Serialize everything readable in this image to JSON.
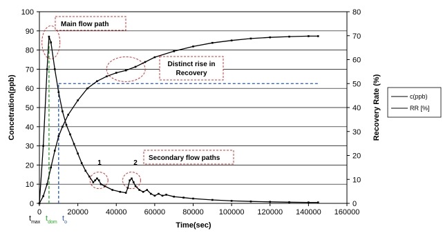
{
  "chart_data": {
    "type": "line",
    "xlabel": "Time(sec)",
    "ylabel_left": "Concetration(ppb)",
    "ylabel_right": "Recovery Rate (%)",
    "xlim": [
      0,
      160000
    ],
    "ylim_left": [
      0,
      100
    ],
    "ylim_right": [
      0,
      80
    ],
    "x_ticks": [
      "0",
      "20000",
      "40000",
      "60000",
      "80000",
      "100000",
      "120000",
      "140000",
      "160000"
    ],
    "y_left_ticks": [
      "0",
      "10",
      "20",
      "30",
      "40",
      "50",
      "60",
      "70",
      "80",
      "90",
      "100"
    ],
    "y_right_ticks": [
      "0",
      "10",
      "20",
      "30",
      "40",
      "50",
      "60",
      "70",
      "80"
    ],
    "grid": "horizontal",
    "legend_position": "right",
    "legend": [
      "c(ppb)",
      "RR [%]"
    ],
    "series": [
      {
        "name": "c(ppb)",
        "axis": "left",
        "color": "#000000",
        "x": [
          0,
          2000,
          4000,
          5000,
          6000,
          8000,
          10000,
          12000,
          14000,
          16000,
          18000,
          20000,
          22000,
          24000,
          26000,
          28000,
          29000,
          30000,
          31000,
          32000,
          34000,
          38000,
          42000,
          45000,
          46000,
          47000,
          48000,
          49000,
          50000,
          52000,
          54000,
          56000,
          58000,
          60000,
          62000,
          64000,
          66000,
          70000,
          75000,
          80000,
          90000,
          100000,
          110000,
          120000,
          130000,
          140000,
          145000
        ],
        "values": [
          0,
          30,
          70,
          87,
          84,
          70,
          58,
          48,
          41,
          36,
          31,
          26,
          21,
          17,
          14,
          11,
          12,
          13,
          12,
          10,
          9,
          7,
          6,
          5.5,
          8,
          12,
          13,
          11,
          9,
          7,
          6,
          7,
          5,
          4,
          5,
          4,
          4.5,
          3.5,
          3,
          2.5,
          1.8,
          1.3,
          1.0,
          0.8,
          0.6,
          0.5,
          0.5
        ]
      },
      {
        "name": "RR [%]",
        "axis": "right",
        "color": "#000000",
        "x": [
          0,
          2000,
          4000,
          6000,
          8000,
          10000,
          12000,
          15000,
          20000,
          25000,
          30000,
          35000,
          40000,
          45000,
          50000,
          55000,
          60000,
          70000,
          80000,
          90000,
          100000,
          110000,
          120000,
          130000,
          140000,
          145000
        ],
        "values": [
          0,
          3,
          8,
          15,
          22,
          28,
          32,
          37,
          43,
          48,
          51,
          53,
          54.5,
          55.5,
          57,
          59,
          61,
          63.5,
          65.5,
          67,
          68,
          68.8,
          69.3,
          69.6,
          69.8,
          69.8
        ]
      }
    ],
    "reference_lines": [
      {
        "orientation": "horizontal",
        "axis": "right",
        "value": 50,
        "x_from": 10000,
        "x_to": 145000,
        "color": "#2255bb"
      },
      {
        "orientation": "vertical",
        "x": 10000,
        "y_to_right": 50,
        "color": "#2255bb"
      },
      {
        "orientation": "vertical",
        "x": 5000,
        "y_to_left": 87,
        "color": "#22aa22"
      }
    ],
    "annotations": [
      {
        "text": "Main flow path",
        "box_color": "#e03030"
      },
      {
        "text": "Distinct rise in",
        "text2": "Recovery",
        "box_color": "#e03030"
      },
      {
        "text": "Secondary flow paths",
        "box_color": "#e03030"
      },
      {
        "text": "1"
      },
      {
        "text": "2"
      }
    ],
    "time_markers": [
      {
        "label": "t",
        "sub": "max",
        "color": "#000000"
      },
      {
        "label": "t",
        "sub": "dom",
        "color": "#22aa22"
      },
      {
        "label": "t",
        "sub": "o",
        "color": "#2255bb"
      }
    ]
  }
}
